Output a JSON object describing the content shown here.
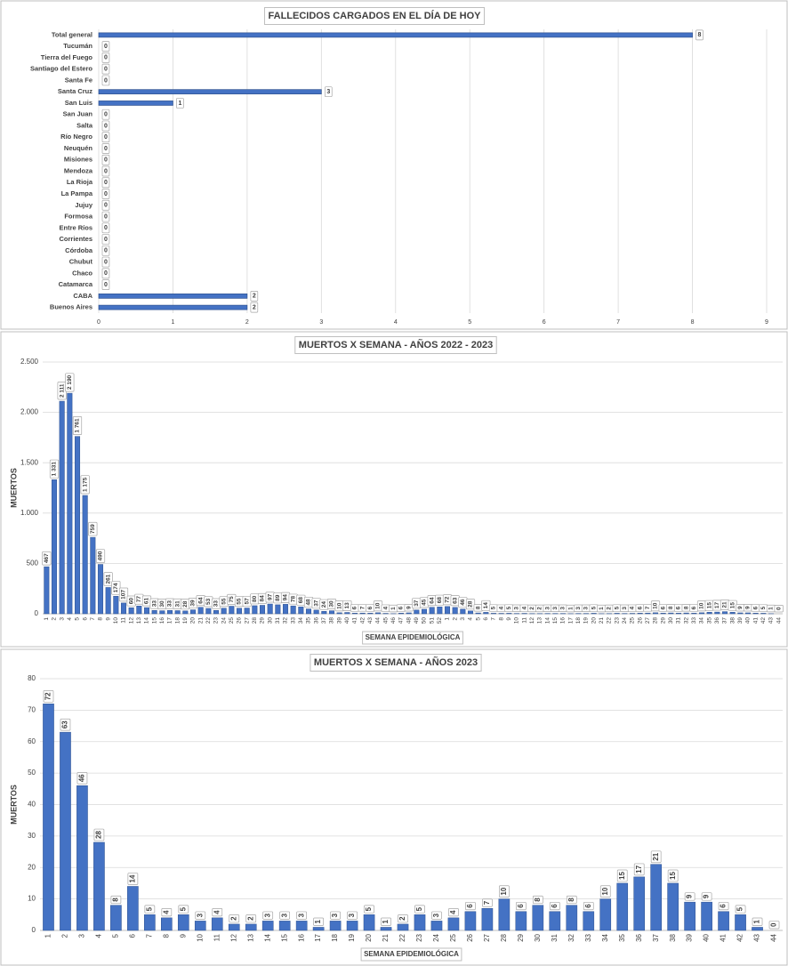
{
  "chart_data": [
    {
      "type": "hbar",
      "title": "FALLECIDOS CARGADOS EN EL DÍA DE HOY",
      "color": "#4472c4",
      "grid": true,
      "categories": [
        "Total general",
        "Tucumán",
        "Tierra del Fuego",
        "Santiago del Estero",
        "Santa Fe",
        "Santa Cruz",
        "San Luis",
        "San Juan",
        "Salta",
        "Río Negro",
        "Neuquén",
        "Misiones",
        "Mendoza",
        "La Rioja",
        "La Pampa",
        "Jujuy",
        "Formosa",
        "Entre Ríos",
        "Corrientes",
        "Córdoba",
        "Chubut",
        "Chaco",
        "Catamarca",
        "CABA",
        "Buenos Aires"
      ],
      "values": [
        8,
        0,
        0,
        0,
        0,
        3,
        1,
        0,
        0,
        0,
        0,
        0,
        0,
        0,
        0,
        0,
        0,
        0,
        0,
        0,
        0,
        0,
        0,
        2,
        2
      ],
      "xlim": [
        0,
        9
      ],
      "xticks": [
        0,
        1,
        2,
        3,
        4,
        5,
        6,
        7,
        8,
        9
      ]
    },
    {
      "type": "bar",
      "title": "MUERTOS X SEMANA - AÑOS 2022 - 2023",
      "color": "#4472c4",
      "grid": true,
      "y_label": "MUERTOS",
      "x_label": "SEMANA EPIDEMIOLÓGICA",
      "categories": [
        "1",
        "2",
        "3",
        "4",
        "5",
        "6",
        "7",
        "8",
        "9",
        "10",
        "11",
        "12",
        "13",
        "14",
        "15",
        "16",
        "17",
        "18",
        "19",
        "20",
        "21",
        "22",
        "23",
        "24",
        "25",
        "26",
        "27",
        "28",
        "29",
        "30",
        "31",
        "32",
        "33",
        "34",
        "35",
        "36",
        "37",
        "38",
        "39",
        "40",
        "41",
        "42",
        "43",
        "44",
        "45",
        "46",
        "47",
        "48",
        "49",
        "50",
        "51",
        "52",
        "1",
        "2",
        "3",
        "4",
        "5",
        "6",
        "7",
        "8",
        "9",
        "10",
        "11",
        "12",
        "13",
        "14",
        "15",
        "16",
        "17",
        "18",
        "19",
        "20",
        "21",
        "22",
        "23",
        "24",
        "25",
        "26",
        "27",
        "28",
        "29",
        "30",
        "31",
        "32",
        "33",
        "34",
        "35",
        "36",
        "37",
        "38",
        "39",
        "40",
        "41",
        "42",
        "43",
        "44"
      ],
      "values": [
        467,
        1331,
        2111,
        2190,
        1761,
        1175,
        759,
        490,
        261,
        174,
        107,
        60,
        77,
        61,
        33,
        30,
        33,
        31,
        28,
        39,
        64,
        53,
        33,
        55,
        75,
        55,
        57,
        80,
        84,
        97,
        89,
        94,
        78,
        68,
        48,
        37,
        24,
        30,
        10,
        13,
        6,
        7,
        6,
        10,
        4,
        1,
        6,
        9,
        37,
        45,
        64,
        68,
        72,
        63,
        46,
        28,
        8,
        14,
        5,
        4,
        5,
        3,
        4,
        2,
        2,
        3,
        3,
        3,
        1,
        3,
        3,
        5,
        1,
        2,
        5,
        3,
        4,
        6,
        7,
        10,
        6,
        8,
        6,
        8,
        6,
        10,
        15,
        17,
        21,
        15,
        9,
        9,
        6,
        5,
        1,
        0
      ],
      "value_labels": [
        "467",
        "1 331",
        "2 111",
        "2 190",
        "1 761",
        "1 175",
        "759",
        "490",
        "261",
        "174",
        "107",
        "60",
        "77",
        "61",
        "33",
        "30",
        "33",
        "31",
        "28",
        "39",
        "64",
        "53",
        "33",
        "55",
        "75",
        "55",
        "57",
        "80",
        "84",
        "97",
        "89",
        "94",
        "78",
        "68",
        "48",
        "37",
        "24",
        "30",
        "10",
        "13",
        "6",
        "7",
        "6",
        "10",
        "4",
        "1",
        "6",
        "9",
        "37",
        "45",
        "64",
        "68",
        "72",
        "63",
        "46",
        "28",
        "8",
        "14",
        "5",
        "4",
        "5",
        "3",
        "4",
        "2",
        "2",
        "3",
        "3",
        "3",
        "1",
        "3",
        "3",
        "5",
        "1",
        "2",
        "5",
        "3",
        "4",
        "6",
        "7",
        "10",
        "6",
        "8",
        "6",
        "8",
        "6",
        "10",
        "15",
        "17",
        "21",
        "15",
        "9",
        "9",
        "6",
        "5",
        "1",
        "0"
      ],
      "ylim": [
        0,
        2500
      ],
      "yticks": [
        0,
        500,
        {
          "value": 1000,
          "label": "1.000"
        },
        {
          "value": 1500,
          "label": "1.500"
        },
        {
          "value": 2000,
          "label": "2.000"
        },
        {
          "value": 2500,
          "label": "2.500"
        }
      ]
    },
    {
      "type": "bar",
      "title": "MUERTOS X SEMANA - AÑOS 2023",
      "color": "#4472c4",
      "grid": true,
      "y_label": "MUERTOS",
      "x_label": "SEMANA EPIDEMIOLÓGICA",
      "categories": [
        "1",
        "2",
        "3",
        "4",
        "5",
        "6",
        "7",
        "8",
        "9",
        "10",
        "11",
        "12",
        "13",
        "14",
        "15",
        "16",
        "17",
        "18",
        "19",
        "20",
        "21",
        "22",
        "23",
        "24",
        "25",
        "26",
        "27",
        "28",
        "29",
        "30",
        "31",
        "32",
        "33",
        "34",
        "35",
        "36",
        "37",
        "38",
        "39",
        "40",
        "41",
        "42",
        "43",
        "44"
      ],
      "values": [
        72,
        63,
        46,
        28,
        8,
        14,
        5,
        4,
        5,
        3,
        4,
        2,
        2,
        3,
        3,
        3,
        1,
        3,
        3,
        5,
        1,
        2,
        5,
        3,
        4,
        6,
        7,
        10,
        6,
        8,
        6,
        8,
        6,
        10,
        15,
        17,
        21,
        15,
        9,
        9,
        6,
        5,
        1,
        0
      ],
      "ylim": [
        0,
        80
      ],
      "yticks": [
        0,
        10,
        20,
        30,
        40,
        50,
        60,
        70,
        80
      ]
    }
  ]
}
